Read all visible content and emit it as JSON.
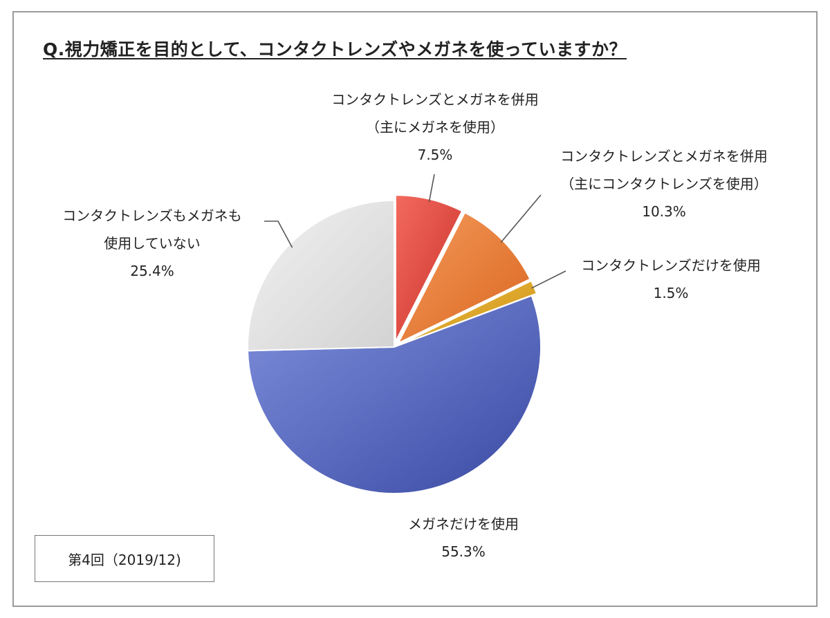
{
  "title": "Q.視力矯正を目的として、コンタクトレンズやメガネを使っていますか？",
  "round_label": "第4回（2019/12)",
  "chart_data": {
    "type": "pie",
    "title": "Q.視力矯正を目的として、コンタクトレンズやメガネを使っていますか？",
    "start": "12 o'clock",
    "direction": "clockwise",
    "slices": [
      {
        "label_lines": [
          "コンタクトレンズとメガネを併用",
          "（主にメガネを使用）"
        ],
        "value": 7.5,
        "value_text": "7.5%",
        "color": "#e8473c",
        "exploded": true
      },
      {
        "label_lines": [
          "コンタクトレンズとメガネを併用",
          "（主にコンタクトレンズを使用）"
        ],
        "value": 10.3,
        "value_text": "10.3%",
        "color": "#ed7d31",
        "exploded": true
      },
      {
        "label_lines": [
          "コンタクトレンズだけを使用"
        ],
        "value": 1.5,
        "value_text": "1.5%",
        "color": "#e7a91f",
        "exploded": true
      },
      {
        "label_lines": [
          "メガネだけを使用"
        ],
        "value": 55.3,
        "value_text": "55.3%",
        "color": "#4b5fbc",
        "exploded": false
      },
      {
        "label_lines": [
          "コンタクトレンズもメガネも",
          "使用していない"
        ],
        "value": 25.4,
        "value_text": "25.4%",
        "color": "#e1e1e1",
        "exploded": false
      }
    ]
  }
}
